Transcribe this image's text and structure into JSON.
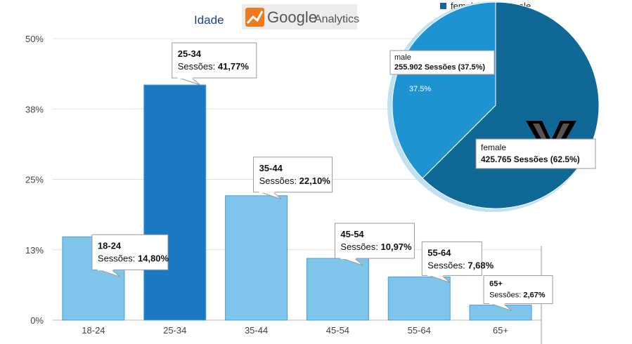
{
  "heading": "Idade",
  "logo": {
    "brand": "Google",
    "product": "Analytics",
    "icon": "analytics-bars-icon"
  },
  "colors": {
    "bar_light": "#7fc4ea",
    "bar_dark": "#1a79c2",
    "bar_edge": "#4a9fd6",
    "pie_female": "#0f6896",
    "pie_male": "#1e93d2",
    "pie_rim": "#bfe1f3",
    "grid": "#e0e0e0",
    "heading": "#1f3f99"
  },
  "chart_data": [
    {
      "type": "bar",
      "title": "Idade",
      "categories": [
        "18-24",
        "25-34",
        "35-44",
        "45-54",
        "55-64",
        "65+"
      ],
      "values": [
        14.8,
        41.77,
        22.1,
        10.97,
        7.68,
        2.67
      ],
      "highlighted_index": 1,
      "ylim": [
        0,
        50
      ],
      "yticks": [
        0,
        12.5,
        25,
        37.5,
        50
      ],
      "ytick_labels": [
        "0%",
        "13%",
        "25%",
        "38%",
        "50%"
      ],
      "grid": true,
      "tooltips": [
        {
          "title": "18-24",
          "label": "Sessões:",
          "value": "14,80%"
        },
        {
          "title": "25-34",
          "label": "Sessões:",
          "value": "41,77%"
        },
        {
          "title": "35-44",
          "label": "Sessões:",
          "value": "22,10%"
        },
        {
          "title": "45-54",
          "label": "Sessões:",
          "value": "10,97%"
        },
        {
          "title": "55-64",
          "label": "Sessões:",
          "value": "7,68%"
        },
        {
          "title": "65+",
          "label": "Sessões:",
          "value": "2,67%"
        }
      ]
    },
    {
      "type": "pie",
      "legend": [
        "female",
        "male"
      ],
      "legend_position": "top",
      "slices": [
        {
          "name": "female",
          "value": 425765,
          "percent": 62.5,
          "tooltip_title": "female",
          "tooltip_value": "425.765 Sessões (62.5%)"
        },
        {
          "name": "male",
          "value": 255902,
          "percent": 37.5,
          "tooltip_title": "male",
          "tooltip_value": "255.902 Sessões (37.5%)",
          "slice_label": "37.5%"
        }
      ]
    }
  ]
}
